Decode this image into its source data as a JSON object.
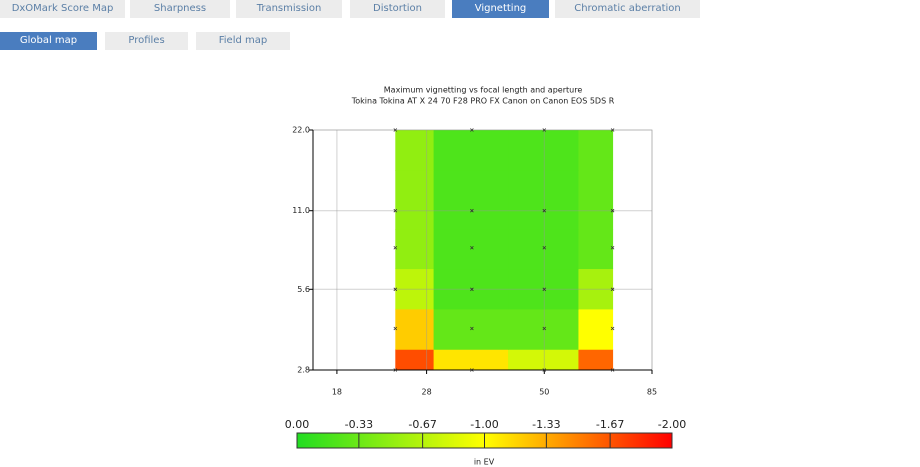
{
  "tabs": [
    "DxOMark Score Map",
    "Sharpness",
    "Transmission",
    "Distortion",
    "Vignetting",
    "Chromatic aberration"
  ],
  "active_tab": 4,
  "subtabs": [
    "Global map",
    "Profiles",
    "Field map"
  ],
  "active_subtab": 0,
  "chart_data": {
    "type": "heatmap",
    "title": "Maximum vignetting vs focal length and aperture",
    "subtitle": "Tokina Tokina AT X 24 70 F28 PRO FX Canon on Canon EOS 5DS R",
    "x": [
      24,
      35,
      50,
      70
    ],
    "y": [
      2.8,
      4,
      5.6,
      8,
      11,
      22
    ],
    "values": [
      [
        -1.7,
        -1.1,
        -0.8,
        -1.6
      ],
      [
        -1.2,
        -0.3,
        -0.3,
        -1.0
      ],
      [
        -0.7,
        -0.2,
        -0.2,
        -0.6
      ],
      [
        -0.5,
        -0.2,
        -0.2,
        -0.3
      ],
      [
        -0.5,
        -0.2,
        -0.2,
        -0.3
      ],
      [
        -0.5,
        -0.2,
        -0.2,
        -0.3
      ]
    ],
    "xscale": "log",
    "yscale": "log",
    "xlim": [
      16,
      85
    ],
    "xticks": [
      18,
      28,
      50,
      85
    ],
    "ylim": [
      2.8,
      22
    ],
    "yticks": [
      2.8,
      5.6,
      {
        "value": 11,
        "label": "11.0"
      },
      {
        "value": 22,
        "label": "22.0"
      }
    ],
    "grid": true,
    "colorbar": {
      "label": "in EV",
      "clim": [
        0,
        -2
      ],
      "colors": [
        "#22dd22",
        "#ffff00",
        "#ff0000"
      ],
      "ticks": [
        {
          "value": 0,
          "label": "0.00"
        },
        -0.33,
        -0.67,
        {
          "value": -1,
          "label": "-1.00"
        },
        -1.33,
        -1.67,
        {
          "value": -2,
          "label": "-2.00"
        }
      ]
    }
  }
}
